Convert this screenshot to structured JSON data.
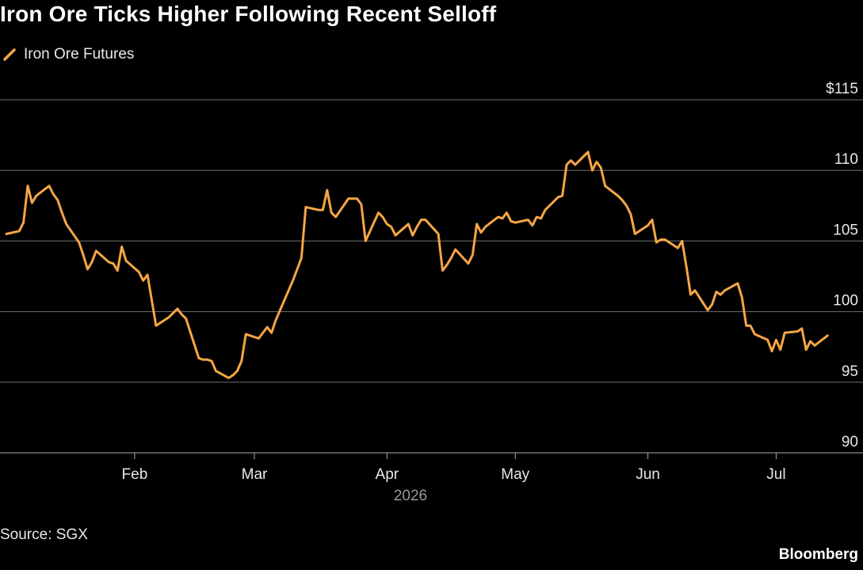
{
  "source": "Source: SGX",
  "logo_text": "Bloomberg",
  "colors": {
    "background": "#000000",
    "line": "#f5a546",
    "grid": "#6e6e6e",
    "text": "#e8e8e8",
    "axis": "#aaaaaa"
  },
  "chart_data": {
    "type": "line",
    "title": "Iron Ore Ticks Higher Following Recent Selloff",
    "legend_position": "top-left",
    "grid": "horizontal",
    "xlabel": "2026",
    "ylabel": "",
    "ylim": [
      90,
      115
    ],
    "xlim": [
      "2026-01-02",
      "2026-07-10"
    ],
    "y_ticks": [
      {
        "value": 115,
        "label": "$115"
      },
      {
        "value": 110,
        "label": "110"
      },
      {
        "value": 105,
        "label": "105"
      },
      {
        "value": 100,
        "label": "100"
      },
      {
        "value": 95,
        "label": "95"
      },
      {
        "value": 90,
        "label": "90"
      }
    ],
    "x_ticks": [
      {
        "value": "2026-02-01",
        "label": "Feb"
      },
      {
        "value": "2026-03-01",
        "label": "Mar"
      },
      {
        "value": "2026-04-01",
        "label": "Apr"
      },
      {
        "value": "2026-05-01",
        "label": "May"
      },
      {
        "value": "2026-06-01",
        "label": "Jun"
      },
      {
        "value": "2026-07-01",
        "label": "Jul"
      }
    ],
    "series": [
      {
        "name": "Iron Ore Futures",
        "color": "#f5a546",
        "points": [
          [
            "2026-01-02",
            105.5
          ],
          [
            "2026-01-05",
            105.7
          ],
          [
            "2026-01-06",
            106.3
          ],
          [
            "2026-01-07",
            108.9
          ],
          [
            "2026-01-08",
            107.7
          ],
          [
            "2026-01-09",
            108.2
          ],
          [
            "2026-01-12",
            108.9
          ],
          [
            "2026-01-13",
            108.3
          ],
          [
            "2026-01-14",
            107.9
          ],
          [
            "2026-01-15",
            107.0
          ],
          [
            "2026-01-16",
            106.2
          ],
          [
            "2026-01-19",
            104.9
          ],
          [
            "2026-01-20",
            104.0
          ],
          [
            "2026-01-21",
            103.0
          ],
          [
            "2026-01-22",
            103.5
          ],
          [
            "2026-01-23",
            104.3
          ],
          [
            "2026-01-26",
            103.5
          ],
          [
            "2026-01-27",
            103.4
          ],
          [
            "2026-01-28",
            102.9
          ],
          [
            "2026-01-29",
            104.6
          ],
          [
            "2026-01-30",
            103.6
          ],
          [
            "2026-02-02",
            102.8
          ],
          [
            "2026-02-03",
            102.2
          ],
          [
            "2026-02-04",
            102.6
          ],
          [
            "2026-02-05",
            100.8
          ],
          [
            "2026-02-06",
            99.0
          ],
          [
            "2026-02-09",
            99.6
          ],
          [
            "2026-02-10",
            99.9
          ],
          [
            "2026-02-11",
            100.2
          ],
          [
            "2026-02-12",
            99.8
          ],
          [
            "2026-02-13",
            99.5
          ],
          [
            "2026-02-16",
            96.7
          ],
          [
            "2026-02-17",
            96.6
          ],
          [
            "2026-02-18",
            96.6
          ],
          [
            "2026-02-19",
            96.5
          ],
          [
            "2026-02-20",
            95.8
          ],
          [
            "2026-02-23",
            95.3
          ],
          [
            "2026-02-24",
            95.5
          ],
          [
            "2026-02-25",
            95.8
          ],
          [
            "2026-02-26",
            96.5
          ],
          [
            "2026-02-27",
            98.4
          ],
          [
            "2026-03-02",
            98.1
          ],
          [
            "2026-03-03",
            98.5
          ],
          [
            "2026-03-04",
            98.9
          ],
          [
            "2026-03-05",
            98.5
          ],
          [
            "2026-03-06",
            99.4
          ],
          [
            "2026-03-09",
            101.5
          ],
          [
            "2026-03-10",
            102.2
          ],
          [
            "2026-03-11",
            103.0
          ],
          [
            "2026-03-12",
            103.8
          ],
          [
            "2026-03-13",
            107.4
          ],
          [
            "2026-03-16",
            107.2
          ],
          [
            "2026-03-17",
            107.2
          ],
          [
            "2026-03-18",
            108.6
          ],
          [
            "2026-03-19",
            107.0
          ],
          [
            "2026-03-20",
            106.7
          ],
          [
            "2026-03-23",
            108.0
          ],
          [
            "2026-03-24",
            108.0
          ],
          [
            "2026-03-25",
            108.0
          ],
          [
            "2026-03-26",
            107.6
          ],
          [
            "2026-03-27",
            105.0
          ],
          [
            "2026-03-30",
            107.0
          ],
          [
            "2026-03-31",
            106.7
          ],
          [
            "2026-04-01",
            106.2
          ],
          [
            "2026-04-02",
            106.0
          ],
          [
            "2026-04-03",
            105.4
          ],
          [
            "2026-04-06",
            106.2
          ],
          [
            "2026-04-07",
            105.4
          ],
          [
            "2026-04-08",
            106.0
          ],
          [
            "2026-04-09",
            106.5
          ],
          [
            "2026-04-10",
            106.5
          ],
          [
            "2026-04-13",
            105.5
          ],
          [
            "2026-04-14",
            102.9
          ],
          [
            "2026-04-15",
            103.3
          ],
          [
            "2026-04-16",
            103.8
          ],
          [
            "2026-04-17",
            104.4
          ],
          [
            "2026-04-20",
            103.4
          ],
          [
            "2026-04-21",
            104.0
          ],
          [
            "2026-04-22",
            106.2
          ],
          [
            "2026-04-23",
            105.6
          ],
          [
            "2026-04-24",
            106.0
          ],
          [
            "2026-04-27",
            106.7
          ],
          [
            "2026-04-28",
            106.6
          ],
          [
            "2026-04-29",
            107.0
          ],
          [
            "2026-04-30",
            106.4
          ],
          [
            "2026-05-01",
            106.3
          ],
          [
            "2026-05-04",
            106.5
          ],
          [
            "2026-05-05",
            106.1
          ],
          [
            "2026-05-06",
            106.7
          ],
          [
            "2026-05-07",
            106.6
          ],
          [
            "2026-05-08",
            107.2
          ],
          [
            "2026-05-11",
            108.1
          ],
          [
            "2026-05-12",
            108.2
          ],
          [
            "2026-05-13",
            110.4
          ],
          [
            "2026-05-14",
            110.7
          ],
          [
            "2026-05-15",
            110.4
          ],
          [
            "2026-05-18",
            111.3
          ],
          [
            "2026-05-19",
            110.0
          ],
          [
            "2026-05-20",
            110.6
          ],
          [
            "2026-05-21",
            110.2
          ],
          [
            "2026-05-22",
            108.9
          ],
          [
            "2026-05-25",
            108.2
          ],
          [
            "2026-05-26",
            107.9
          ],
          [
            "2026-05-27",
            107.5
          ],
          [
            "2026-05-28",
            106.9
          ],
          [
            "2026-05-29",
            105.5
          ],
          [
            "2026-06-01",
            106.1
          ],
          [
            "2026-06-02",
            106.5
          ],
          [
            "2026-06-03",
            104.9
          ],
          [
            "2026-06-04",
            105.1
          ],
          [
            "2026-06-05",
            105.1
          ],
          [
            "2026-06-08",
            104.5
          ],
          [
            "2026-06-09",
            105.0
          ],
          [
            "2026-06-10",
            103.2
          ],
          [
            "2026-06-11",
            101.2
          ],
          [
            "2026-06-12",
            101.5
          ],
          [
            "2026-06-15",
            100.1
          ],
          [
            "2026-06-16",
            100.5
          ],
          [
            "2026-06-17",
            101.4
          ],
          [
            "2026-06-18",
            101.2
          ],
          [
            "2026-06-19",
            101.5
          ],
          [
            "2026-06-22",
            102.0
          ],
          [
            "2026-06-23",
            101.0
          ],
          [
            "2026-06-24",
            99.0
          ],
          [
            "2026-06-25",
            99.0
          ],
          [
            "2026-06-26",
            98.4
          ],
          [
            "2026-06-29",
            98.0
          ],
          [
            "2026-06-30",
            97.2
          ],
          [
            "2026-07-01",
            98.0
          ],
          [
            "2026-07-02",
            97.3
          ],
          [
            "2026-07-03",
            98.5
          ],
          [
            "2026-07-06",
            98.6
          ],
          [
            "2026-07-07",
            98.8
          ],
          [
            "2026-07-08",
            97.3
          ],
          [
            "2026-07-09",
            97.9
          ],
          [
            "2026-07-10",
            97.6
          ],
          [
            "2026-07-13",
            98.3
          ]
        ]
      }
    ]
  }
}
